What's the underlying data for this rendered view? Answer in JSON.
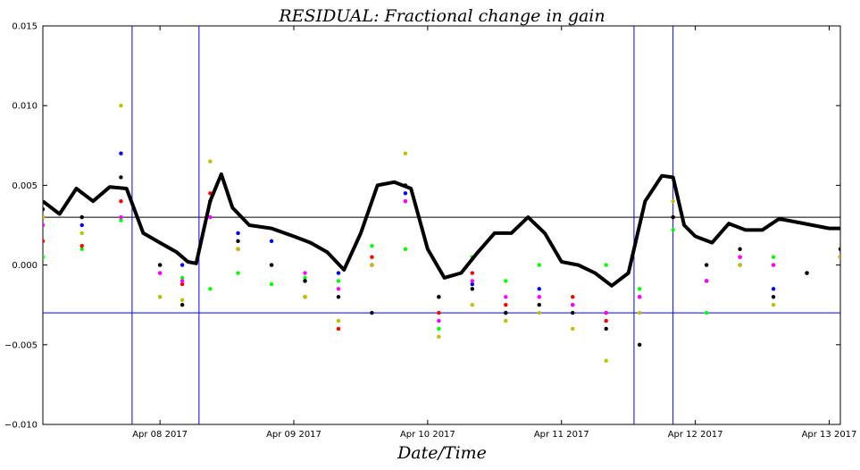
{
  "chart_data": {
    "type": "scatter",
    "title": "RESIDUAL: Fractional change in gain",
    "xlabel": "Date/Time",
    "ylabel": "",
    "xlim": [
      "2017-04-07T03:00",
      "2017-04-13T02:00"
    ],
    "ylim": [
      -0.01,
      0.015
    ],
    "x_ticks": [
      {
        "x": "2017-04-08T00:00",
        "label": "Apr 08 2017"
      },
      {
        "x": "2017-04-09T00:00",
        "label": "Apr 09 2017"
      },
      {
        "x": "2017-04-10T00:00",
        "label": "Apr 10 2017"
      },
      {
        "x": "2017-04-11T00:00",
        "label": "Apr 11 2017"
      },
      {
        "x": "2017-04-12T00:00",
        "label": "Apr 12 2017"
      },
      {
        "x": "2017-04-13T00:00",
        "label": "Apr 13 2017"
      }
    ],
    "y_ticks": [
      {
        "y": 0.015,
        "label": "0.015"
      },
      {
        "y": 0.01,
        "label": "0.010"
      },
      {
        "y": 0.005,
        "label": "0.005"
      },
      {
        "y": 0.0,
        "label": "0.000"
      },
      {
        "y": -0.005,
        "label": "−0.005"
      },
      {
        "y": -0.01,
        "label": "−0.010"
      }
    ],
    "hlines": [
      {
        "y": 0.003,
        "color": "#000000"
      },
      {
        "y": -0.003,
        "color": "#0000ff"
      }
    ],
    "vlines": [
      {
        "x": "2017-04-07T19:00",
        "color": "#0000ff"
      },
      {
        "x": "2017-04-08T07:00",
        "color": "#0000ff"
      },
      {
        "x": "2017-04-11T13:00",
        "color": "#0000ff"
      },
      {
        "x": "2017-04-11T20:00",
        "color": "#0000ff"
      }
    ],
    "line_series": {
      "color": "#000000",
      "x": [
        "2017-04-07T03:00",
        "2017-04-07T06:00",
        "2017-04-07T09:00",
        "2017-04-07T12:00",
        "2017-04-07T15:00",
        "2017-04-07T18:00",
        "2017-04-07T21:00",
        "2017-04-08T00:00",
        "2017-04-08T03:00",
        "2017-04-08T05:00",
        "2017-04-08T06:30",
        "2017-04-08T09:00",
        "2017-04-08T11:00",
        "2017-04-08T13:00",
        "2017-04-08T16:00",
        "2017-04-08T20:00",
        "2017-04-09T00:00",
        "2017-04-09T03:00",
        "2017-04-09T06:00",
        "2017-04-09T09:00",
        "2017-04-09T12:00",
        "2017-04-09T15:00",
        "2017-04-09T18:00",
        "2017-04-09T21:00",
        "2017-04-10T00:00",
        "2017-04-10T03:00",
        "2017-04-10T06:00",
        "2017-04-10T09:00",
        "2017-04-10T12:00",
        "2017-04-10T15:00",
        "2017-04-10T18:00",
        "2017-04-10T21:00",
        "2017-04-11T00:00",
        "2017-04-11T03:00",
        "2017-04-11T06:00",
        "2017-04-11T09:00",
        "2017-04-11T12:00",
        "2017-04-11T15:00",
        "2017-04-11T18:00",
        "2017-04-11T20:00",
        "2017-04-11T22:00",
        "2017-04-12T00:00",
        "2017-04-12T03:00",
        "2017-04-12T06:00",
        "2017-04-12T09:00",
        "2017-04-12T12:00",
        "2017-04-12T15:00",
        "2017-04-12T18:00",
        "2017-04-12T21:00",
        "2017-04-13T00:00",
        "2017-04-13T02:00"
      ],
      "y": [
        0.004,
        0.0032,
        0.0048,
        0.004,
        0.0049,
        0.0048,
        0.002,
        0.0014,
        0.0008,
        0.0002,
        0.0001,
        0.004,
        0.0057,
        0.0036,
        0.0025,
        0.0023,
        0.0018,
        0.0014,
        0.0008,
        -0.0003,
        0.002,
        0.005,
        0.0052,
        0.0048,
        0.001,
        -0.0008,
        -0.0005,
        0.0008,
        0.002,
        0.002,
        0.003,
        0.002,
        0.0002,
        0.0,
        -0.0005,
        -0.0013,
        -0.0005,
        0.004,
        0.0056,
        0.0055,
        0.0025,
        0.0018,
        0.0014,
        0.0026,
        0.0022,
        0.0022,
        0.0029,
        0.0027,
        0.0025,
        0.0023,
        0.0023
      ]
    },
    "scatter_series": [
      {
        "color": "#00ff00",
        "x": [
          "2017-04-07T03:00",
          "2017-04-07T10:00",
          "2017-04-07T17:00",
          "2017-04-08T00:00",
          "2017-04-08T04:00",
          "2017-04-08T09:00",
          "2017-04-08T14:00",
          "2017-04-08T20:00",
          "2017-04-09T02:00",
          "2017-04-09T08:00",
          "2017-04-09T14:00",
          "2017-04-09T20:00",
          "2017-04-10T02:00",
          "2017-04-10T08:00",
          "2017-04-10T14:00",
          "2017-04-10T20:00",
          "2017-04-11T02:00",
          "2017-04-11T08:00",
          "2017-04-11T14:00",
          "2017-04-11T20:00",
          "2017-04-12T02:00",
          "2017-04-12T08:00",
          "2017-04-12T14:00",
          "2017-04-12T20:00",
          "2017-04-13T02:00"
        ],
        "y": [
          0.0005,
          0.001,
          0.0028,
          -0.002,
          -0.0008,
          -0.0015,
          -0.0005,
          -0.0012,
          -0.0008,
          -0.001,
          0.0012,
          0.001,
          -0.004,
          0.0005,
          -0.001,
          0.0,
          -0.002,
          0.0,
          -0.0015,
          0.0022,
          -0.003,
          0.0005,
          0.0005,
          -0.0005,
          0.0005
        ]
      },
      {
        "color": "#0000ff",
        "x": [
          "2017-04-07T03:00",
          "2017-04-07T10:00",
          "2017-04-07T17:00",
          "2017-04-08T00:00",
          "2017-04-08T04:00",
          "2017-04-08T09:00",
          "2017-04-08T14:00",
          "2017-04-08T20:00",
          "2017-04-09T02:00",
          "2017-04-09T08:00",
          "2017-04-09T14:00",
          "2017-04-09T20:00",
          "2017-04-10T02:00",
          "2017-04-10T08:00",
          "2017-04-10T14:00",
          "2017-04-10T20:00",
          "2017-04-11T02:00",
          "2017-04-11T08:00",
          "2017-04-11T14:00",
          "2017-04-11T20:00",
          "2017-04-12T02:00",
          "2017-04-12T08:00",
          "2017-04-12T14:00",
          "2017-04-12T20:00",
          "2017-04-13T02:00"
        ],
        "y": [
          0.003,
          0.0025,
          0.007,
          0.0,
          0.0,
          0.003,
          0.002,
          0.0015,
          -0.001,
          -0.0005,
          0.0,
          0.0045,
          -0.002,
          -0.0012,
          -0.003,
          -0.0015,
          -0.0025,
          -0.003,
          -0.002,
          0.003,
          -0.001,
          0.0,
          -0.0015,
          -0.0005,
          0.0005
        ]
      },
      {
        "color": "#ff0000",
        "x": [
          "2017-04-07T03:00",
          "2017-04-07T10:00",
          "2017-04-07T17:00",
          "2017-04-08T00:00",
          "2017-04-08T04:00",
          "2017-04-08T09:00",
          "2017-04-08T14:00",
          "2017-04-08T20:00",
          "2017-04-09T02:00",
          "2017-04-09T08:00",
          "2017-04-09T14:00",
          "2017-04-09T20:00",
          "2017-04-10T02:00",
          "2017-04-10T08:00",
          "2017-04-10T14:00",
          "2017-04-10T20:00",
          "2017-04-11T02:00",
          "2017-04-11T08:00",
          "2017-04-11T14:00",
          "2017-04-11T20:00",
          "2017-04-12T02:00",
          "2017-04-12T08:00",
          "2017-04-12T14:00",
          "2017-04-12T20:00",
          "2017-04-13T02:00"
        ],
        "y": [
          0.0015,
          0.0012,
          0.004,
          -0.0005,
          -0.0012,
          0.0045,
          0.001,
          0.0,
          -0.002,
          -0.004,
          0.0005,
          0.004,
          -0.003,
          -0.0005,
          -0.0025,
          -0.002,
          -0.002,
          -0.0035,
          -0.002,
          0.003,
          -0.001,
          0.0005,
          0.0,
          -0.0005,
          0.0005
        ]
      },
      {
        "color": "#ff00ff",
        "x": [
          "2017-04-07T03:00",
          "2017-04-07T10:00",
          "2017-04-07T17:00",
          "2017-04-08T00:00",
          "2017-04-08T04:00",
          "2017-04-08T09:00",
          "2017-04-08T14:00",
          "2017-04-08T20:00",
          "2017-04-09T02:00",
          "2017-04-09T08:00",
          "2017-04-09T14:00",
          "2017-04-09T20:00",
          "2017-04-10T02:00",
          "2017-04-10T08:00",
          "2017-04-10T14:00",
          "2017-04-10T20:00",
          "2017-04-11T02:00",
          "2017-04-11T08:00",
          "2017-04-11T14:00",
          "2017-04-11T20:00",
          "2017-04-12T02:00",
          "2017-04-12T08:00",
          "2017-04-12T14:00",
          "2017-04-12T20:00",
          "2017-04-13T02:00"
        ],
        "y": [
          0.0025,
          0.003,
          0.003,
          -0.0005,
          -0.001,
          0.003,
          0.001,
          0.0,
          -0.0005,
          -0.0015,
          0.0,
          0.004,
          -0.0035,
          -0.001,
          -0.002,
          -0.002,
          -0.0025,
          -0.003,
          -0.002,
          0.003,
          -0.001,
          0.0005,
          0.0,
          -0.0005,
          0.0005
        ]
      },
      {
        "color": "#bfbf00",
        "x": [
          "2017-04-07T03:00",
          "2017-04-07T10:00",
          "2017-04-07T17:00",
          "2017-04-08T00:00",
          "2017-04-08T04:00",
          "2017-04-08T09:00",
          "2017-04-08T14:00",
          "2017-04-08T20:00",
          "2017-04-09T02:00",
          "2017-04-09T08:00",
          "2017-04-09T14:00",
          "2017-04-09T20:00",
          "2017-04-10T02:00",
          "2017-04-10T08:00",
          "2017-04-10T14:00",
          "2017-04-10T20:00",
          "2017-04-11T02:00",
          "2017-04-11T08:00",
          "2017-04-11T14:00",
          "2017-04-11T20:00",
          "2017-04-12T02:00",
          "2017-04-12T08:00",
          "2017-04-12T14:00",
          "2017-04-12T20:00",
          "2017-04-13T02:00"
        ],
        "y": [
          0.003,
          0.002,
          0.01,
          -0.002,
          -0.0022,
          0.0065,
          0.001,
          0.0,
          -0.002,
          -0.0035,
          0.0,
          0.007,
          -0.0045,
          -0.0025,
          -0.0035,
          -0.003,
          -0.004,
          -0.006,
          -0.003,
          0.004,
          0.0,
          0.0,
          -0.0025,
          -0.0005,
          0.0005
        ]
      },
      {
        "color": "#000000",
        "x": [
          "2017-04-07T03:00",
          "2017-04-07T10:00",
          "2017-04-07T17:00",
          "2017-04-08T00:00",
          "2017-04-08T04:00",
          "2017-04-08T09:00",
          "2017-04-08T14:00",
          "2017-04-08T20:00",
          "2017-04-09T02:00",
          "2017-04-09T08:00",
          "2017-04-09T14:00",
          "2017-04-09T20:00",
          "2017-04-10T02:00",
          "2017-04-10T08:00",
          "2017-04-10T14:00",
          "2017-04-10T20:00",
          "2017-04-11T02:00",
          "2017-04-11T08:00",
          "2017-04-11T14:00",
          "2017-04-11T20:00",
          "2017-04-12T02:00",
          "2017-04-12T08:00",
          "2017-04-12T14:00",
          "2017-04-12T20:00",
          "2017-04-13T02:00"
        ],
        "y": [
          0.0035,
          0.003,
          0.0055,
          0.0,
          -0.0025,
          0.004,
          0.0015,
          0.0,
          -0.001,
          -0.002,
          -0.003,
          0.005,
          -0.002,
          -0.0015,
          -0.003,
          -0.0025,
          -0.003,
          -0.004,
          -0.005,
          0.003,
          0.0,
          0.001,
          -0.002,
          -0.0005,
          0.001
        ]
      }
    ]
  }
}
